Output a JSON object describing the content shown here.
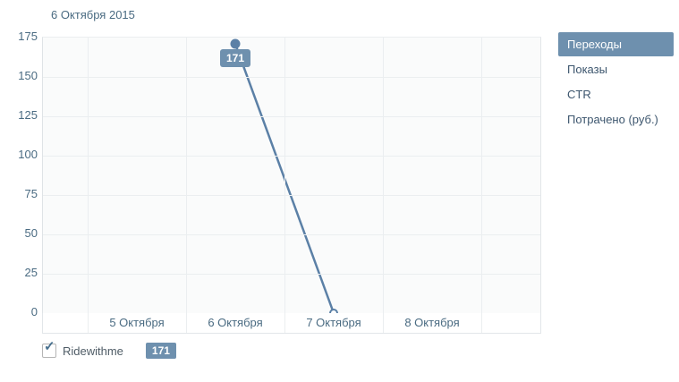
{
  "colors": {
    "accent": "#6e90ae",
    "line": "#5b80a6",
    "text": "#4a6b82",
    "menu_text": "#3d566e",
    "grid": "#ebeef0",
    "plot_bg": "#fafbfb",
    "axis_border": "#e2e6e9"
  },
  "chart_data": {
    "type": "line",
    "title": "6 Октября 2015",
    "categories": [
      "5 Октября",
      "6 Октября",
      "7 Октября",
      "8 Октября"
    ],
    "series": [
      {
        "name": "Ridewithme",
        "values": [
          null,
          171,
          0,
          null
        ]
      }
    ],
    "ylim": [
      0,
      175
    ],
    "yticks": [
      0,
      25,
      50,
      75,
      100,
      125,
      150,
      175
    ],
    "grid": true,
    "legend_position": "bottom-left",
    "tooltip": {
      "category": "6 Октября",
      "text": "171"
    }
  },
  "menu": {
    "items": [
      {
        "key": "clicks",
        "label": "Переходы",
        "selected": true
      },
      {
        "key": "impressions",
        "label": "Показы",
        "selected": false
      },
      {
        "key": "ctr",
        "label": "CTR",
        "selected": false
      },
      {
        "key": "spent",
        "label": "Потрачено (руб.)",
        "selected": false
      }
    ]
  },
  "legend": {
    "checked": true,
    "label": "Ridewithme",
    "value": "171"
  }
}
